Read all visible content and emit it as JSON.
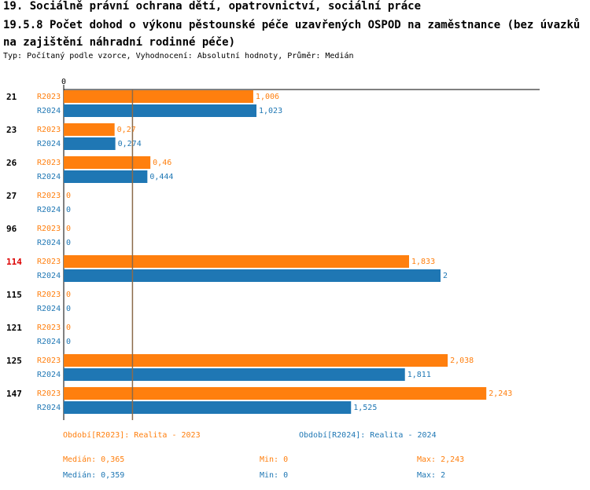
{
  "title_line1": "19. Sociálně právní ochrana dětí, opatrovnictví, sociální práce",
  "title_line2": "19.5.8 Počet dohod o výkonu pěstounské péče uzavřených OSPOD na zaměstnance (bez úvazků na zajištění náhradní rodinné péče)",
  "subtitle": "Typ: Počítaný podle vzorce, Vyhodnocení: Absolutní hodnoty, Průměr: Medián",
  "colors": {
    "r2023": "#ff7f0e",
    "r2024": "#1f77b4",
    "highlight": "#dd0000",
    "median_line": "#8b6b4a"
  },
  "chart_data": {
    "type": "bar",
    "orientation": "horizontal",
    "axis_zero_label": "0",
    "xlim": [
      0,
      2.4
    ],
    "median_marker": 0.365,
    "categories": [
      "21",
      "23",
      "26",
      "27",
      "96",
      "114",
      "115",
      "121",
      "125",
      "147"
    ],
    "highlighted_category": "114",
    "series": [
      {
        "name": "R2023",
        "values": [
          1.006,
          0.27,
          0.46,
          0,
          0,
          1.833,
          0,
          0,
          2.038,
          2.243
        ],
        "labels": [
          "1,006",
          "0,27",
          "0,46",
          "0",
          "0",
          "1,833",
          "0",
          "0",
          "2,038",
          "2,243"
        ]
      },
      {
        "name": "R2024",
        "values": [
          1.023,
          0.274,
          0.444,
          0,
          0,
          2,
          0,
          0,
          1.811,
          1.525
        ],
        "labels": [
          "1,023",
          "0,274",
          "0,444",
          "0",
          "0",
          "2",
          "0",
          "0",
          "1,811",
          "1,525"
        ]
      }
    ]
  },
  "legend": {
    "r2023": "Období[R2023]: Realita - 2023",
    "r2024": "Období[R2024]: Realita - 2024"
  },
  "stats": {
    "r2023": {
      "median": "Medián: 0,365",
      "min": "Min: 0",
      "max": "Max: 2,243"
    },
    "r2024": {
      "median": "Medián: 0,359",
      "min": "Min: 0",
      "max": "Max: 2"
    }
  }
}
